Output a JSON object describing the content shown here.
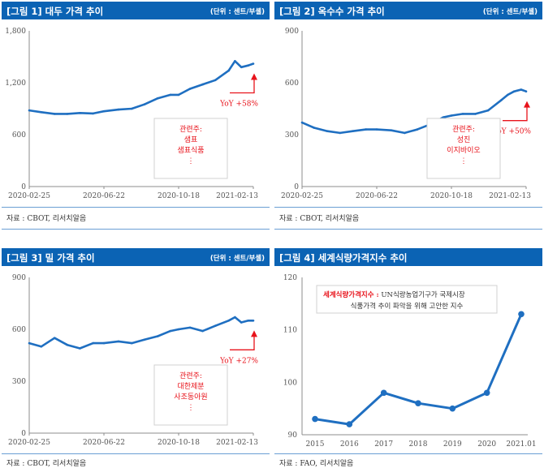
{
  "panels": [
    {
      "title": "[그림 1] 대두 가격 추이",
      "unit": "(단위 : 센트/부셸)",
      "source": "자료 : CBOT, 리서치알음"
    },
    {
      "title": "[그림 2] 옥수수 가격 추이",
      "unit": "(단위 : 센트/부셸)",
      "source": "자료 : CBOT, 리서치알음"
    },
    {
      "title": "[그림 3] 밀 가격 추이",
      "unit": "(단위 : 센트/부셸)",
      "source": "자료 : CBOT, 리서치알음"
    },
    {
      "title": "[그림 4] 세계식량가격지수 추이",
      "unit": "",
      "source": "자료 : FAO, 리서치알음"
    }
  ],
  "colors": {
    "header": "#0b63b4",
    "line": "#1f6fc1",
    "accent": "#e8131b",
    "axis": "#8c8c8c"
  },
  "chart_data": [
    {
      "type": "line",
      "ylim": [
        0,
        1800
      ],
      "yticks": [
        "1,800",
        "1,200",
        "600",
        "0"
      ],
      "xticks": [
        "2020-02-25",
        "2020-06-22",
        "2020-10-18",
        "2021-02-13"
      ],
      "x": [
        "2020-02-25",
        "2020-03-15",
        "2020-04-05",
        "2020-04-25",
        "2020-05-15",
        "2020-06-05",
        "2020-06-22",
        "2020-07-15",
        "2020-08-05",
        "2020-08-25",
        "2020-09-15",
        "2020-10-05",
        "2020-10-18",
        "2020-11-05",
        "2020-11-25",
        "2020-12-15",
        "2021-01-05",
        "2021-01-15",
        "2021-01-25",
        "2021-02-05",
        "2021-02-13"
      ],
      "values": [
        880,
        860,
        840,
        840,
        850,
        845,
        870,
        890,
        900,
        950,
        1020,
        1060,
        1060,
        1130,
        1180,
        1230,
        1340,
        1450,
        1380,
        1400,
        1420
      ],
      "yoy": "YoY +58%",
      "note": [
        "관련주:",
        "샘표",
        "샘표식품",
        "⋮"
      ]
    },
    {
      "type": "line",
      "ylim": [
        0,
        900
      ],
      "yticks": [
        "900",
        "600",
        "300",
        "0"
      ],
      "xticks": [
        "2020-02-25",
        "2020-06-22",
        "2020-10-18",
        "2021-02-13"
      ],
      "x": [
        "2020-02-25",
        "2020-03-15",
        "2020-04-05",
        "2020-04-25",
        "2020-05-15",
        "2020-06-05",
        "2020-06-22",
        "2020-07-15",
        "2020-08-05",
        "2020-08-25",
        "2020-09-15",
        "2020-10-05",
        "2020-10-18",
        "2020-11-05",
        "2020-11-25",
        "2020-12-15",
        "2021-01-05",
        "2021-01-15",
        "2021-01-25",
        "2021-02-05",
        "2021-02-13"
      ],
      "values": [
        370,
        340,
        320,
        310,
        320,
        330,
        330,
        325,
        310,
        330,
        360,
        400,
        410,
        420,
        420,
        440,
        500,
        530,
        550,
        560,
        550
      ],
      "yoy": "YoY +50%",
      "note": [
        "관련주:",
        "성진",
        "이지바이오",
        "⋮"
      ]
    },
    {
      "type": "line",
      "ylim": [
        0,
        900
      ],
      "yticks": [
        "900",
        "600",
        "300",
        "0"
      ],
      "xticks": [
        "2020-02-25",
        "2020-06-22",
        "2020-10-18",
        "2021-02-13"
      ],
      "x": [
        "2020-02-25",
        "2020-03-15",
        "2020-04-05",
        "2020-04-25",
        "2020-05-15",
        "2020-06-05",
        "2020-06-22",
        "2020-07-15",
        "2020-08-05",
        "2020-08-25",
        "2020-09-15",
        "2020-10-05",
        "2020-10-18",
        "2020-11-05",
        "2020-11-25",
        "2020-12-15",
        "2021-01-05",
        "2021-01-15",
        "2021-01-25",
        "2021-02-05",
        "2021-02-13"
      ],
      "values": [
        520,
        500,
        550,
        510,
        490,
        520,
        520,
        530,
        520,
        540,
        560,
        590,
        600,
        610,
        590,
        620,
        650,
        670,
        640,
        650,
        650
      ],
      "yoy": "YoY +27%",
      "note": [
        "관련주:",
        "대한제분",
        "사조동아원",
        "⋮"
      ]
    },
    {
      "type": "line",
      "ylim": [
        90,
        120
      ],
      "yticks": [
        "120",
        "110",
        "100",
        "90"
      ],
      "categories": [
        "2015",
        "2016",
        "2017",
        "2018",
        "2019",
        "2020",
        "2021.01"
      ],
      "values": [
        93,
        92,
        98,
        96,
        95,
        98,
        113
      ],
      "note_head": "세계식량가격지수 :",
      "note_line1": "UN식량농업기구가 국제시장",
      "note_line2": "식품가격 추이 파악을 위해 고안한 지수"
    }
  ]
}
